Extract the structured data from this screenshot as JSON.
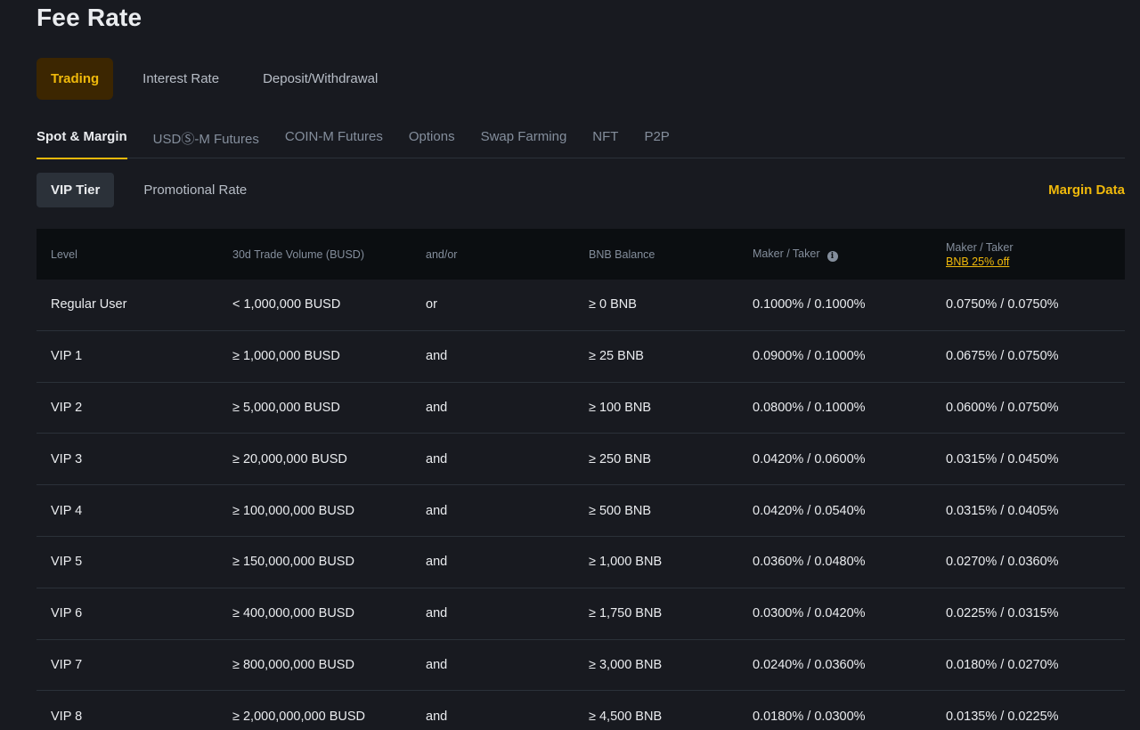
{
  "page_title": "Fee Rate",
  "top_tabs": [
    {
      "label": "Trading",
      "active": true
    },
    {
      "label": "Interest Rate",
      "active": false
    },
    {
      "label": "Deposit/Withdrawal",
      "active": false
    }
  ],
  "sub_tabs": [
    {
      "label": "Spot & Margin",
      "active": true
    },
    {
      "label": "USDⓈ-M Futures",
      "active": false
    },
    {
      "label": "COIN-M Futures",
      "active": false
    },
    {
      "label": "Options",
      "active": false
    },
    {
      "label": "Swap Farming",
      "active": false
    },
    {
      "label": "NFT",
      "active": false
    },
    {
      "label": "P2P",
      "active": false
    }
  ],
  "tier_buttons": [
    {
      "label": "VIP Tier",
      "active": true
    },
    {
      "label": "Promotional Rate",
      "active": false
    }
  ],
  "margin_data_link": "Margin Data",
  "table": {
    "headers": {
      "level": "Level",
      "volume": "30d Trade Volume (BUSD)",
      "andor": "and/or",
      "bnb_balance": "BNB Balance",
      "maker_taker": "Maker / Taker",
      "maker_taker_bnb": "Maker / Taker",
      "bnb_discount": "BNB 25% off"
    },
    "rows": [
      {
        "level": "Regular User",
        "volume": "< 1,000,000 BUSD",
        "andor": "or",
        "bnb": "≥ 0 BNB",
        "rate": "0.1000% / 0.1000%",
        "rate_bnb": "0.0750% / 0.0750%"
      },
      {
        "level": "VIP 1",
        "volume": "≥ 1,000,000 BUSD",
        "andor": "and",
        "bnb": "≥ 25 BNB",
        "rate": "0.0900% / 0.1000%",
        "rate_bnb": "0.0675% / 0.0750%"
      },
      {
        "level": "VIP 2",
        "volume": "≥ 5,000,000 BUSD",
        "andor": "and",
        "bnb": "≥ 100 BNB",
        "rate": "0.0800% / 0.1000%",
        "rate_bnb": "0.0600% / 0.0750%"
      },
      {
        "level": "VIP 3",
        "volume": "≥ 20,000,000 BUSD",
        "andor": "and",
        "bnb": "≥ 250 BNB",
        "rate": "0.0420% / 0.0600%",
        "rate_bnb": "0.0315% / 0.0450%"
      },
      {
        "level": "VIP 4",
        "volume": "≥ 100,000,000 BUSD",
        "andor": "and",
        "bnb": "≥ 500 BNB",
        "rate": "0.0420% / 0.0540%",
        "rate_bnb": "0.0315% / 0.0405%"
      },
      {
        "level": "VIP 5",
        "volume": "≥ 150,000,000 BUSD",
        "andor": "and",
        "bnb": "≥ 1,000 BNB",
        "rate": "0.0360% / 0.0480%",
        "rate_bnb": "0.0270% / 0.0360%"
      },
      {
        "level": "VIP 6",
        "volume": "≥ 400,000,000 BUSD",
        "andor": "and",
        "bnb": "≥ 1,750 BNB",
        "rate": "0.0300% / 0.0420%",
        "rate_bnb": "0.0225% / 0.0315%"
      },
      {
        "level": "VIP 7",
        "volume": "≥ 800,000,000 BUSD",
        "andor": "and",
        "bnb": "≥ 3,000 BNB",
        "rate": "0.0240% / 0.0360%",
        "rate_bnb": "0.0180% / 0.0270%"
      },
      {
        "level": "VIP 8",
        "volume": "≥ 2,000,000,000 BUSD",
        "andor": "and",
        "bnb": "≥ 4,500 BNB",
        "rate": "0.0180% / 0.0300%",
        "rate_bnb": "0.0135% / 0.0225%"
      }
    ]
  },
  "colors": {
    "background": "#181a20",
    "accent": "#f0b90b",
    "header_bg": "#0b0e11",
    "divider": "#2b3139"
  }
}
